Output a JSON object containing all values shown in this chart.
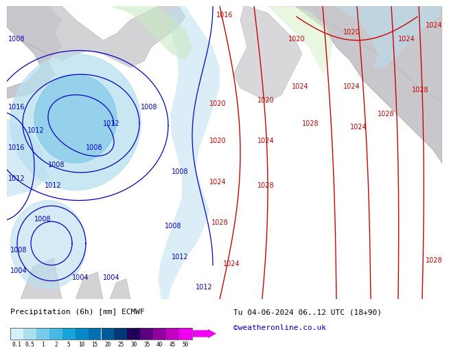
{
  "title_left": "Precipitation (6h) [mm] ECMWF",
  "title_right": "Tu 04-06-2024 06..12 UTC (18+90)",
  "credit": "©weatheronline.co.uk",
  "colorbar_labels": [
    "0.1",
    "0.5",
    "1",
    "2",
    "5",
    "10",
    "15",
    "20",
    "25",
    "30",
    "35",
    "40",
    "45",
    "50"
  ],
  "colorbar_colors": [
    "#d4f0f8",
    "#a8e0f0",
    "#78cce8",
    "#48b8e0",
    "#18a4d8",
    "#0888c8",
    "#0070b0",
    "#005898",
    "#003878",
    "#200058",
    "#580080",
    "#9000a0",
    "#c400c0",
    "#f000f0"
  ],
  "ocean_color": "#c8e8f4",
  "land_color": "#c8c8cc",
  "land_color2": "#b8c8b0",
  "bg_bottom": "#ffffff",
  "credit_color": "#0000cc",
  "blue_line": "#0000cc",
  "red_line": "#cc0000",
  "prec_light": "#b8dff0",
  "prec_mid": "#80c8e8",
  "prec_green": "#c8e8c0",
  "prec_green2": "#d8f0c8"
}
